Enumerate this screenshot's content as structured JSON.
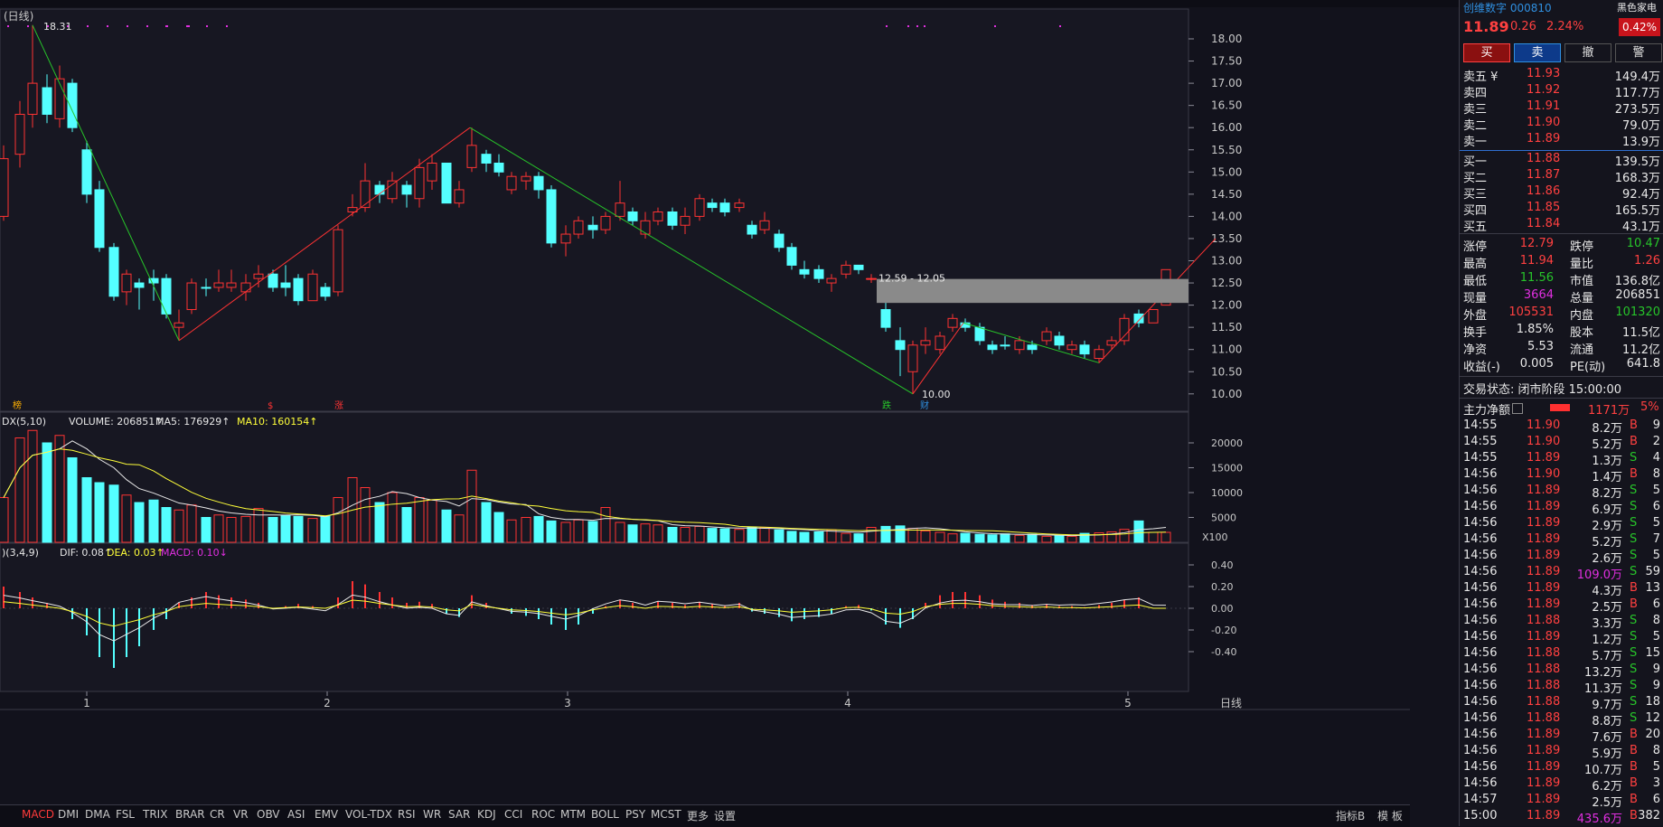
{
  "chart": {
    "period_label": "(日线)",
    "high_label": "18.31",
    "low_label": "10.00",
    "range_label": "12.59 - 12.05",
    "price_ticks": [
      "18.00",
      "17.50",
      "17.00",
      "16.50",
      "16.00",
      "15.50",
      "15.00",
      "14.50",
      "14.00",
      "13.50",
      "13.00",
      "12.50",
      "12.00",
      "11.50",
      "11.00",
      "10.50",
      "10.00"
    ],
    "events": [
      "榜",
      "$",
      "涨",
      "跌",
      "财"
    ]
  },
  "volume": {
    "header_name": "DX(5,10)",
    "volume_text": "VOLUME: 206851↑",
    "ma5_text": "MA5: 176929↑",
    "ma10_text": "MA10: 160154↑",
    "ticks": [
      "20000",
      "15000",
      "10000",
      "5000"
    ],
    "unit": "X100"
  },
  "macd": {
    "header_name": ")(3,4,9)",
    "dif_text": "DIF: 0.08↑",
    "dea_text": "DEA: 0.03↑",
    "macd_text": "MACD: 0.10↓",
    "ticks": [
      "0.40",
      "0.20",
      "0.00",
      "-0.20",
      "-0.40"
    ]
  },
  "xaxis": {
    "months": [
      "1",
      "2",
      "3",
      "4",
      "5"
    ],
    "right_label": "日线"
  },
  "indicator_tabs": [
    "MACD",
    "DMI",
    "DMA",
    "FSL",
    "TRIX",
    "BRAR",
    "CR",
    "VR",
    "OBV",
    "ASI",
    "EMV",
    "VOL-TDX",
    "RSI",
    "WR",
    "SAR",
    "KDJ",
    "CCI",
    "ROC",
    "MTM",
    "BOLL",
    "PSY",
    "MCST",
    "更多",
    "设置"
  ],
  "bottom_right_tabs": [
    "指标B",
    "模 板",
    "+"
  ],
  "stock": {
    "name": "创维数字",
    "code": "000810",
    "price": "11.89",
    "change": "0.26",
    "change_pct": "2.24%",
    "side_label": "黑色家电",
    "side_pct": "0.42%"
  },
  "trade_buttons": [
    "买",
    "卖",
    "撤",
    "警"
  ],
  "order_book": {
    "asks": [
      {
        "label": "卖五 ¥",
        "price": "11.93",
        "vol": "149.4万"
      },
      {
        "label": "卖四",
        "price": "11.92",
        "vol": "117.7万"
      },
      {
        "label": "卖三",
        "price": "11.91",
        "vol": "273.5万"
      },
      {
        "label": "卖二",
        "price": "11.90",
        "vol": "79.0万"
      },
      {
        "label": "卖一",
        "price": "11.89",
        "vol": "13.9万"
      }
    ],
    "bids": [
      {
        "label": "买一",
        "price": "11.88",
        "vol": "139.5万"
      },
      {
        "label": "买二",
        "price": "11.87",
        "vol": "168.3万"
      },
      {
        "label": "买三",
        "price": "11.86",
        "vol": "92.4万"
      },
      {
        "label": "买四",
        "price": "11.85",
        "vol": "165.5万"
      },
      {
        "label": "买五",
        "price": "11.84",
        "vol": "43.1万"
      }
    ]
  },
  "stats": [
    {
      "l1": "涨停",
      "v1": "12.79",
      "c1": "red",
      "l2": "跌停",
      "v2": "10.47",
      "c2": "green"
    },
    {
      "l1": "最高",
      "v1": "11.94",
      "c1": "red",
      "l2": "量比",
      "v2": "1.26",
      "c2": "red"
    },
    {
      "l1": "最低",
      "v1": "11.56",
      "c1": "green",
      "l2": "市值",
      "v2": "136.8亿",
      "c2": "white"
    },
    {
      "l1": "现量",
      "v1": "3664",
      "c1": "magenta",
      "l2": "总量",
      "v2": "206851",
      "c2": "white"
    },
    {
      "l1": "外盘",
      "v1": "105531",
      "c1": "red",
      "l2": "内盘",
      "v2": "101320",
      "c2": "green"
    },
    {
      "l1": "换手",
      "v1": "1.85%",
      "c1": "white",
      "l2": "股本",
      "v2": "11.5亿",
      "c2": "white"
    },
    {
      "l1": "净资",
      "v1": "5.53",
      "c1": "white",
      "l2": "流通",
      "v2": "11.2亿",
      "c2": "white"
    },
    {
      "l1": "收益(-)",
      "v1": "0.005",
      "c1": "white",
      "l2": "PE(动)",
      "v2": "641.8",
      "c2": "white"
    }
  ],
  "trade_status": "交易状态: 闭市阶段 15:00:00",
  "main_flow": {
    "label": "主力净额",
    "value": "1171万",
    "pct": "5%"
  },
  "ticks_list": [
    {
      "t": "14:55",
      "p": "11.90",
      "pc": "red",
      "v": "8.2万",
      "vc": "white",
      "s": "B",
      "n": "9"
    },
    {
      "t": "14:55",
      "p": "11.90",
      "pc": "red",
      "v": "5.2万",
      "vc": "white",
      "s": "B",
      "n": "2"
    },
    {
      "t": "14:55",
      "p": "11.89",
      "pc": "red",
      "v": "1.3万",
      "vc": "white",
      "s": "S",
      "n": "4"
    },
    {
      "t": "14:56",
      "p": "11.90",
      "pc": "red",
      "v": "1.4万",
      "vc": "white",
      "s": "B",
      "n": "8"
    },
    {
      "t": "14:56",
      "p": "11.89",
      "pc": "red",
      "v": "8.2万",
      "vc": "white",
      "s": "S",
      "n": "5"
    },
    {
      "t": "14:56",
      "p": "11.89",
      "pc": "red",
      "v": "6.9万",
      "vc": "white",
      "s": "S",
      "n": "6"
    },
    {
      "t": "14:56",
      "p": "11.89",
      "pc": "red",
      "v": "2.9万",
      "vc": "white",
      "s": "S",
      "n": "5"
    },
    {
      "t": "14:56",
      "p": "11.89",
      "pc": "red",
      "v": "5.2万",
      "vc": "white",
      "s": "S",
      "n": "7"
    },
    {
      "t": "14:56",
      "p": "11.89",
      "pc": "red",
      "v": "2.6万",
      "vc": "white",
      "s": "S",
      "n": "5"
    },
    {
      "t": "14:56",
      "p": "11.89",
      "pc": "red",
      "v": "109.0万",
      "vc": "magenta",
      "s": "S",
      "n": "59"
    },
    {
      "t": "14:56",
      "p": "11.89",
      "pc": "red",
      "v": "4.3万",
      "vc": "white",
      "s": "B",
      "n": "13"
    },
    {
      "t": "14:56",
      "p": "11.89",
      "pc": "red",
      "v": "2.5万",
      "vc": "white",
      "s": "B",
      "n": "6"
    },
    {
      "t": "14:56",
      "p": "11.88",
      "pc": "red",
      "v": "3.3万",
      "vc": "white",
      "s": "S",
      "n": "8"
    },
    {
      "t": "14:56",
      "p": "11.89",
      "pc": "red",
      "v": "1.2万",
      "vc": "white",
      "s": "S",
      "n": "5"
    },
    {
      "t": "14:56",
      "p": "11.88",
      "pc": "red",
      "v": "5.7万",
      "vc": "white",
      "s": "S",
      "n": "15"
    },
    {
      "t": "14:56",
      "p": "11.88",
      "pc": "red",
      "v": "13.2万",
      "vc": "white",
      "s": "S",
      "n": "9"
    },
    {
      "t": "14:56",
      "p": "11.88",
      "pc": "red",
      "v": "11.3万",
      "vc": "white",
      "s": "S",
      "n": "9"
    },
    {
      "t": "14:56",
      "p": "11.88",
      "pc": "red",
      "v": "9.7万",
      "vc": "white",
      "s": "S",
      "n": "18"
    },
    {
      "t": "14:56",
      "p": "11.88",
      "pc": "red",
      "v": "8.8万",
      "vc": "white",
      "s": "S",
      "n": "12"
    },
    {
      "t": "14:56",
      "p": "11.89",
      "pc": "red",
      "v": "7.6万",
      "vc": "white",
      "s": "B",
      "n": "20"
    },
    {
      "t": "14:56",
      "p": "11.89",
      "pc": "red",
      "v": "5.9万",
      "vc": "white",
      "s": "B",
      "n": "8"
    },
    {
      "t": "14:56",
      "p": "11.89",
      "pc": "red",
      "v": "10.7万",
      "vc": "white",
      "s": "B",
      "n": "5"
    },
    {
      "t": "14:56",
      "p": "11.89",
      "pc": "red",
      "v": "6.2万",
      "vc": "white",
      "s": "B",
      "n": "3"
    },
    {
      "t": "14:57",
      "p": "11.89",
      "pc": "red",
      "v": "2.5万",
      "vc": "white",
      "s": "B",
      "n": "6"
    },
    {
      "t": "15:00",
      "p": "11.89",
      "pc": "red",
      "v": "435.6万",
      "vc": "magenta",
      "s": "B",
      "n": "382"
    }
  ]
}
